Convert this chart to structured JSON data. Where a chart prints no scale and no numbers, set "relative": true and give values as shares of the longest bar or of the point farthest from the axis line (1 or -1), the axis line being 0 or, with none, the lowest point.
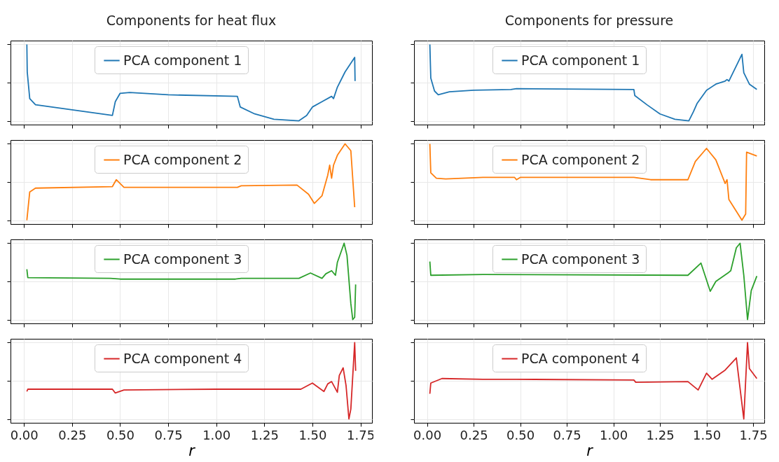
{
  "chart_data": [
    {
      "type": "line",
      "title": "Components for heat flux",
      "relative": true,
      "legend": "top",
      "grid": true,
      "tick_labels": false,
      "xlim": [
        -0.07,
        1.81
      ],
      "xticks": [
        0,
        0.25,
        0.5,
        0.75,
        1,
        1.25,
        1.5,
        1.75
      ],
      "x": [
        0.015,
        0.017,
        0.03,
        0.06,
        0.46,
        0.475,
        0.5,
        0.55,
        0.75,
        1.11,
        1.125,
        1.2,
        1.3,
        1.43,
        1.47,
        1.5,
        1.55,
        1.6,
        1.61,
        1.63,
        1.67,
        1.72,
        1.722
      ],
      "series": [
        {
          "name": "PCA component 1",
          "color": "#1f77b4",
          "values": [
            1.0,
            0.64,
            0.29,
            0.21,
            0.07,
            0.25,
            0.36,
            0.37,
            0.34,
            0.32,
            0.18,
            0.09,
            0.02,
            0.0,
            0.07,
            0.18,
            0.25,
            0.32,
            0.29,
            0.44,
            0.64,
            0.83,
            0.52
          ]
        }
      ]
    },
    {
      "type": "line",
      "relative": true,
      "legend": "top",
      "grid": true,
      "tick_labels": false,
      "xlim": [
        -0.07,
        1.81
      ],
      "xticks": [
        0,
        0.25,
        0.5,
        0.75,
        1,
        1.25,
        1.5,
        1.75
      ],
      "x": [
        0.015,
        0.03,
        0.06,
        0.46,
        0.48,
        0.52,
        1.11,
        1.13,
        1.42,
        1.48,
        1.51,
        1.55,
        1.58,
        1.59,
        1.6,
        1.61,
        1.63,
        1.67,
        1.7,
        1.72
      ],
      "series": [
        {
          "name": "PCA component 2",
          "color": "#ff7f0e",
          "values": [
            0.0,
            0.37,
            0.42,
            0.44,
            0.53,
            0.43,
            0.43,
            0.45,
            0.46,
            0.34,
            0.22,
            0.32,
            0.59,
            0.72,
            0.55,
            0.72,
            0.85,
            1.0,
            0.91,
            0.17
          ]
        }
      ]
    },
    {
      "type": "line",
      "relative": true,
      "legend": "top",
      "grid": true,
      "tick_labels": false,
      "xlim": [
        -0.07,
        1.81
      ],
      "xticks": [
        0,
        0.25,
        0.5,
        0.75,
        1,
        1.25,
        1.5,
        1.75
      ],
      "x": [
        0.015,
        0.02,
        0.45,
        0.5,
        1.1,
        1.13,
        1.43,
        1.49,
        1.55,
        1.57,
        1.6,
        1.62,
        1.63,
        1.665,
        1.68,
        1.7,
        1.71,
        1.72,
        1.725
      ],
      "series": [
        {
          "name": "PCA component 3",
          "color": "#2ca02c",
          "values": [
            0.66,
            0.55,
            0.54,
            0.53,
            0.53,
            0.54,
            0.54,
            0.61,
            0.54,
            0.6,
            0.64,
            0.58,
            0.75,
            1.0,
            0.84,
            0.21,
            0.0,
            0.03,
            0.46
          ]
        }
      ]
    },
    {
      "type": "line",
      "xlabel": "r",
      "relative": true,
      "legend": "top",
      "grid": true,
      "tick_labels": "x",
      "xlim": [
        -0.07,
        1.81
      ],
      "xticks": [
        {
          "value": 0,
          "label": "0.00"
        },
        0.25,
        {
          "value": 0.5,
          "label": "0.50"
        },
        0.75,
        {
          "value": 1,
          "label": "1.00"
        },
        1.25,
        {
          "value": 1.5,
          "label": "1.50"
        },
        1.75
      ],
      "x": [
        0.015,
        0.02,
        0.46,
        0.475,
        0.52,
        1.0,
        1.44,
        1.5,
        1.56,
        1.58,
        1.6,
        1.63,
        1.64,
        1.66,
        1.675,
        1.69,
        1.7,
        1.72,
        1.725
      ],
      "series": [
        {
          "name": "PCA component 4",
          "color": "#d62728",
          "values": [
            0.36,
            0.39,
            0.39,
            0.34,
            0.38,
            0.39,
            0.39,
            0.47,
            0.36,
            0.46,
            0.49,
            0.35,
            0.57,
            0.67,
            0.44,
            0.0,
            0.13,
            1.0,
            0.63
          ]
        }
      ]
    },
    {
      "type": "line",
      "title": "Components for pressure",
      "relative": true,
      "legend": "top",
      "grid": true,
      "tick_labels": false,
      "xlim": [
        -0.07,
        1.81
      ],
      "xticks": [
        0,
        0.25,
        0.5,
        0.75,
        1,
        1.25,
        1.5,
        1.75
      ],
      "x": [
        0.015,
        0.02,
        0.04,
        0.06,
        0.12,
        0.25,
        0.45,
        0.48,
        1.11,
        1.115,
        1.18,
        1.25,
        1.33,
        1.405,
        1.43,
        1.45,
        1.5,
        1.55,
        1.6,
        1.61,
        1.62,
        1.69,
        1.7,
        1.73,
        1.77
      ],
      "series": [
        {
          "name": "PCA component 1",
          "color": "#1f77b4",
          "values": [
            1.0,
            0.56,
            0.39,
            0.34,
            0.38,
            0.4,
            0.41,
            0.42,
            0.41,
            0.33,
            0.21,
            0.09,
            0.02,
            0.0,
            0.12,
            0.23,
            0.4,
            0.48,
            0.52,
            0.54,
            0.52,
            0.87,
            0.63,
            0.48,
            0.41
          ]
        }
      ]
    },
    {
      "type": "line",
      "relative": true,
      "legend": "top",
      "grid": true,
      "tick_labels": false,
      "xlim": [
        -0.07,
        1.81
      ],
      "xticks": [
        0,
        0.25,
        0.5,
        0.75,
        1,
        1.25,
        1.5,
        1.75
      ],
      "x": [
        0.015,
        0.02,
        0.05,
        0.1,
        0.3,
        0.47,
        0.48,
        0.5,
        1.11,
        1.2,
        1.4,
        1.44,
        1.5,
        1.55,
        1.6,
        1.61,
        1.62,
        1.69,
        1.71,
        1.715,
        1.77
      ],
      "series": [
        {
          "name": "PCA component 2",
          "color": "#ff7f0e",
          "values": [
            1.0,
            0.62,
            0.55,
            0.54,
            0.56,
            0.56,
            0.53,
            0.56,
            0.56,
            0.53,
            0.53,
            0.77,
            0.94,
            0.79,
            0.48,
            0.53,
            0.27,
            0.0,
            0.08,
            0.89,
            0.84
          ]
        }
      ]
    },
    {
      "type": "line",
      "relative": true,
      "legend": "top",
      "grid": true,
      "tick_labels": false,
      "xlim": [
        -0.07,
        1.81
      ],
      "xticks": [
        0,
        0.25,
        0.5,
        0.75,
        1,
        1.25,
        1.5,
        1.75
      ],
      "x": [
        0.015,
        0.02,
        0.3,
        1.4,
        1.47,
        1.52,
        1.55,
        1.62,
        1.63,
        1.66,
        1.68,
        1.7,
        1.72,
        1.74,
        1.77
      ],
      "series": [
        {
          "name": "PCA component 3",
          "color": "#2ca02c",
          "values": [
            0.76,
            0.58,
            0.59,
            0.58,
            0.74,
            0.37,
            0.5,
            0.62,
            0.64,
            0.94,
            1.0,
            0.58,
            0.0,
            0.38,
            0.57
          ]
        }
      ]
    },
    {
      "type": "line",
      "xlabel": "r",
      "relative": true,
      "legend": "top",
      "grid": true,
      "tick_labels": "x",
      "xlim": [
        -0.07,
        1.81
      ],
      "xticks": [
        {
          "value": 0,
          "label": "0.00"
        },
        0.25,
        {
          "value": 0.5,
          "label": "0.50"
        },
        0.75,
        {
          "value": 1,
          "label": "1.00"
        },
        1.25,
        {
          "value": 1.5,
          "label": "1.50"
        },
        1.75
      ],
      "x": [
        0.015,
        0.02,
        0.08,
        0.3,
        0.48,
        1.11,
        1.12,
        1.4,
        1.455,
        1.5,
        1.53,
        1.6,
        1.66,
        1.7,
        1.72,
        1.73,
        1.77
      ],
      "series": [
        {
          "name": "PCA component 4",
          "color": "#d62728",
          "values": [
            0.33,
            0.47,
            0.53,
            0.52,
            0.52,
            0.51,
            0.48,
            0.49,
            0.38,
            0.6,
            0.52,
            0.64,
            0.8,
            0.0,
            1.0,
            0.66,
            0.53
          ]
        }
      ]
    }
  ]
}
